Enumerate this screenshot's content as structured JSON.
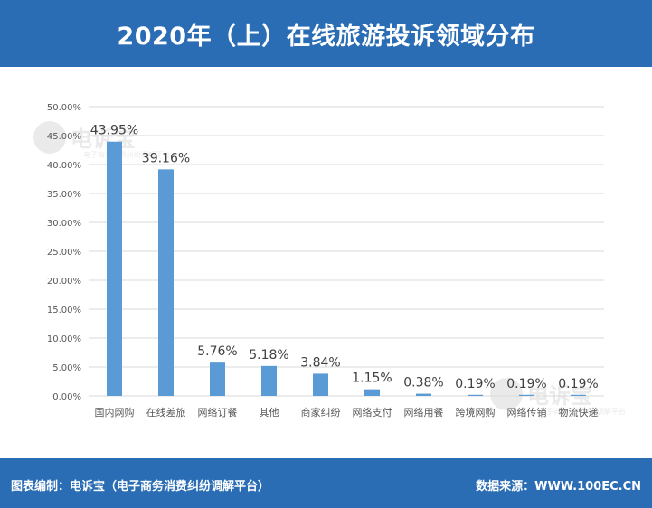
{
  "title": "2020年（上）在线旅游投诉领域分布",
  "footer": {
    "left": "图表编制：电诉宝（电子商务消费纠纷调解平台）",
    "right": "数据来源：WWW.100EC.CN"
  },
  "watermark": {
    "brand": "电诉宝",
    "tagline": "电子商务消费纠纷调解平台"
  },
  "colors": {
    "header_bg": "#2a6db5",
    "bar": "#5b9bd5",
    "grid": "#d9d9d9",
    "axis_text": "#595959",
    "label_text": "#404040"
  },
  "chart_data": {
    "type": "bar",
    "title": "2020年（上）在线旅游投诉领域分布",
    "xlabel": "",
    "ylabel": "",
    "categories": [
      "国内网购",
      "在线差旅",
      "网络订餐",
      "其他",
      "商家纠纷",
      "网络支付",
      "网络用餐",
      "跨境网购",
      "网络传销",
      "物流快递"
    ],
    "values": [
      43.95,
      39.16,
      5.76,
      5.18,
      3.84,
      1.15,
      0.38,
      0.19,
      0.19,
      0.19
    ],
    "data_labels": [
      "43.95%",
      "39.16%",
      "5.76%",
      "5.18%",
      "3.84%",
      "1.15%",
      "0.38%",
      "0.19%",
      "0.19%",
      "0.19%"
    ],
    "ylim": [
      0,
      50
    ],
    "yticks": [
      0,
      5,
      10,
      15,
      20,
      25,
      30,
      35,
      40,
      45,
      50
    ],
    "ytick_labels": [
      "0.00%",
      "5.00%",
      "10.00%",
      "15.00%",
      "20.00%",
      "25.00%",
      "30.00%",
      "35.00%",
      "40.00%",
      "45.00%",
      "50.00%"
    ],
    "grid": true,
    "legend": "none"
  }
}
